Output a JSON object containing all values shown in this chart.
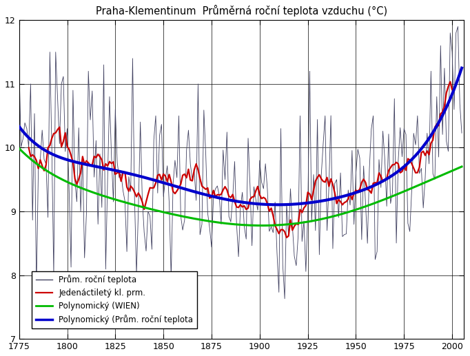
{
  "title": "Praha-Klementinum  Průměrná roční teplota vzduchu (°C)",
  "xlim": [
    1775,
    2006
  ],
  "ylim": [
    7,
    12
  ],
  "yticks": [
    7,
    8,
    9,
    10,
    11,
    12
  ],
  "xticks": [
    1775,
    1800,
    1825,
    1850,
    1875,
    1900,
    1925,
    1950,
    1975,
    2000
  ],
  "annual_color": "#404060",
  "running_color": "#cc0000",
  "wien_poly_color": "#00bb00",
  "praha_poly_color": "#0000cc",
  "background_color": "#ffffff",
  "legend_labels": [
    "Prům. roční teplota",
    "Jedenáctiletý kl. prm.",
    "Polynomický (WIEN)",
    "Polynomický (Prům. roční teplota"
  ]
}
